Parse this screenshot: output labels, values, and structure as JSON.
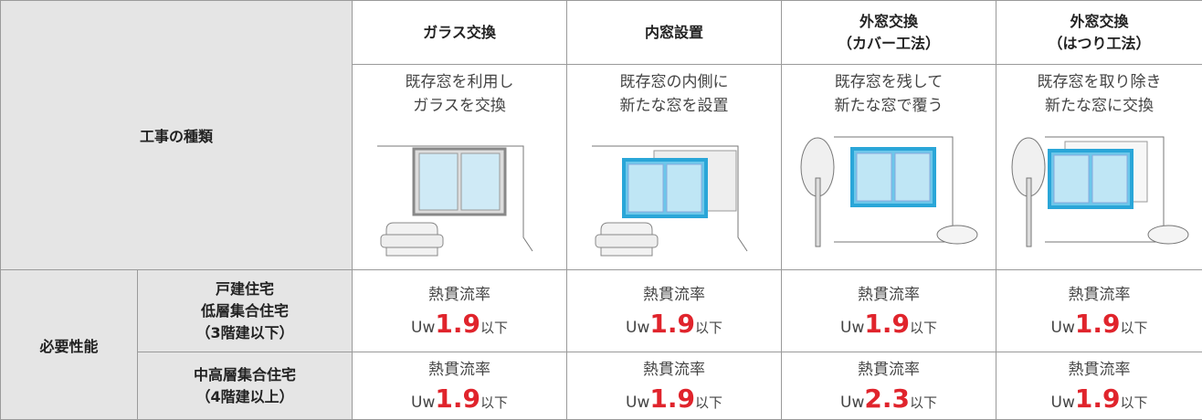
{
  "header": {
    "row_label": "工事の種類",
    "columns": [
      {
        "title_lines": [
          "ガラス交換"
        ],
        "description_lines": [
          "既存窓を利用し",
          "ガラスを交換"
        ]
      },
      {
        "title_lines": [
          "内窓設置"
        ],
        "description_lines": [
          "既存窓の内側に",
          "新たな窓を設置"
        ]
      },
      {
        "title_lines": [
          "外窓交換",
          "（カバー工法）"
        ],
        "description_lines": [
          "既存窓を残して",
          "新たな窓で覆う"
        ]
      },
      {
        "title_lines": [
          "外窓交換",
          "（はつり工法）"
        ],
        "description_lines": [
          "既存窓を取り除き",
          "新たな窓に交換"
        ]
      }
    ]
  },
  "performance": {
    "label": "必要性能",
    "rows": [
      {
        "building_lines": [
          "戸建住宅",
          "低層集合住宅",
          "（3階建以下）"
        ],
        "cells": [
          {
            "metric": "熱貫流率",
            "prefix": "Uw",
            "value": 1.9,
            "suffix": "以下"
          },
          {
            "metric": "熱貫流率",
            "prefix": "Uw",
            "value": 1.9,
            "suffix": "以下"
          },
          {
            "metric": "熱貫流率",
            "prefix": "Uw",
            "value": 1.9,
            "suffix": "以下"
          },
          {
            "metric": "熱貫流率",
            "prefix": "Uw",
            "value": 1.9,
            "suffix": "以下"
          }
        ]
      },
      {
        "building_lines": [
          "中高層集合住宅",
          "（4階建以上）"
        ],
        "cells": [
          {
            "metric": "熱貫流率",
            "prefix": "Uw",
            "value": 1.9,
            "suffix": "以下"
          },
          {
            "metric": "熱貫流率",
            "prefix": "Uw",
            "value": 1.9,
            "suffix": "以下"
          },
          {
            "metric": "熱貫流率",
            "prefix": "Uw",
            "value": 2.3,
            "suffix": "以下"
          },
          {
            "metric": "熱貫流率",
            "prefix": "Uw",
            "value": 1.9,
            "suffix": "以下"
          }
        ]
      }
    ]
  }
}
